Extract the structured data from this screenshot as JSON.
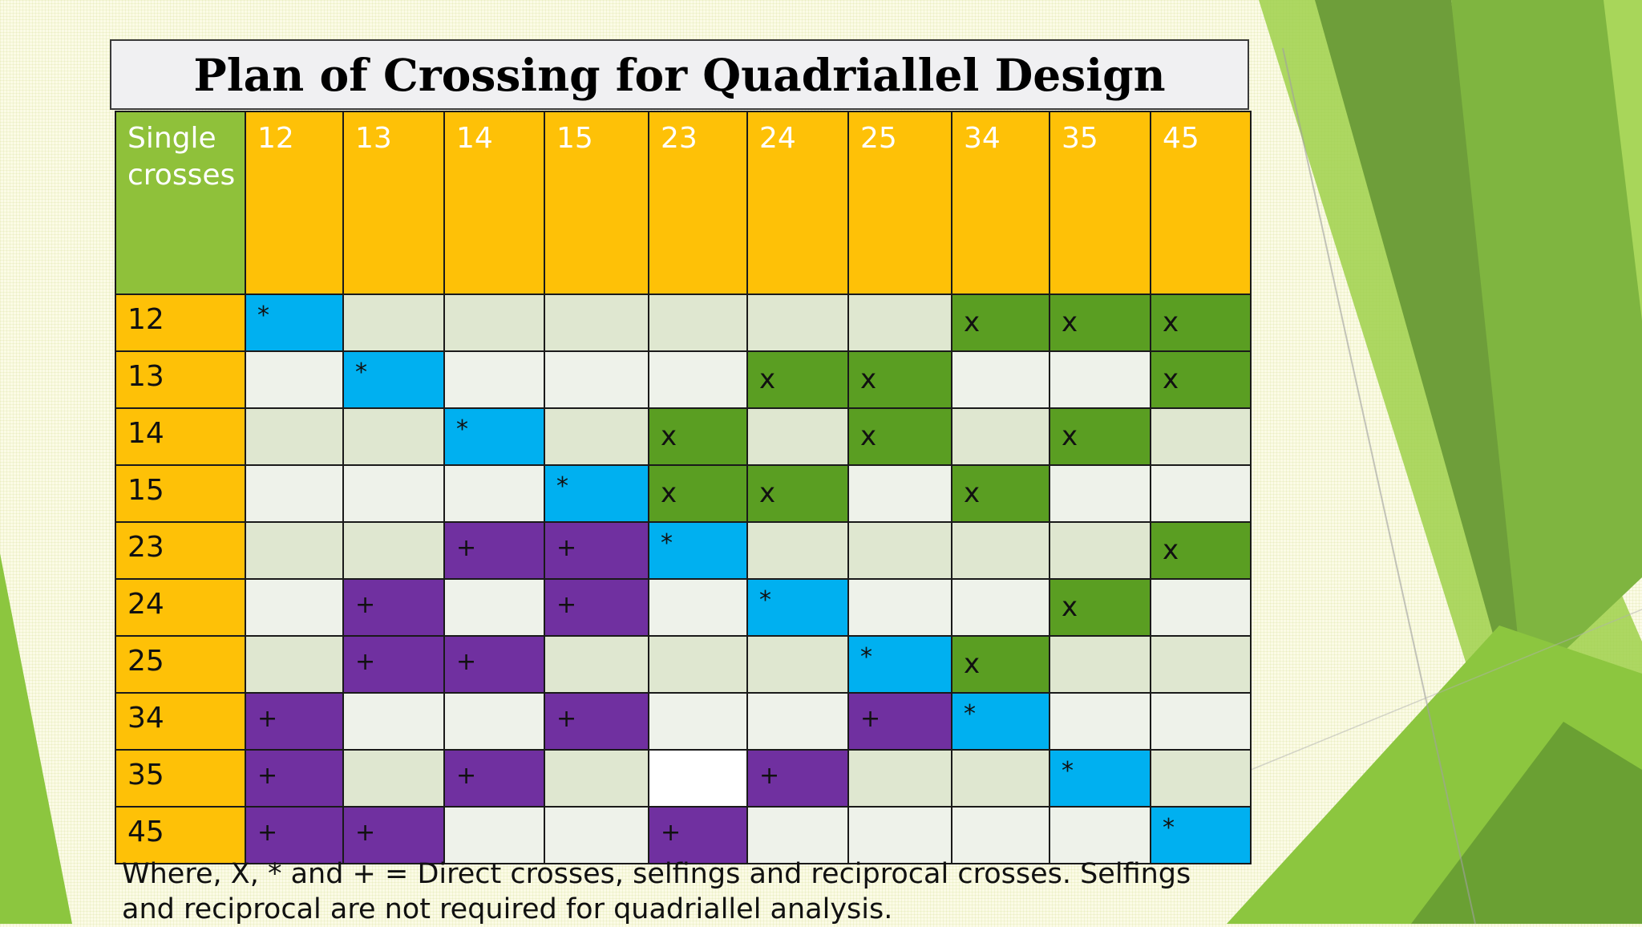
{
  "title": "Plan of Crossing for Quadriallel Design",
  "corner_label": "Single crosses",
  "columns": [
    "12",
    "13",
    "14",
    "15",
    "23",
    "24",
    "25",
    "34",
    "35",
    "45"
  ],
  "rows": [
    {
      "label": "12",
      "cells": [
        {
          "t": "b",
          "v": "*"
        },
        {
          "t": "d",
          "v": ""
        },
        {
          "t": "d",
          "v": ""
        },
        {
          "t": "d",
          "v": ""
        },
        {
          "t": "d",
          "v": ""
        },
        {
          "t": "d",
          "v": ""
        },
        {
          "t": "d",
          "v": ""
        },
        {
          "t": "g",
          "v": "x"
        },
        {
          "t": "g",
          "v": "x"
        },
        {
          "t": "g",
          "v": "x"
        }
      ]
    },
    {
      "label": "13",
      "cells": [
        {
          "t": "l",
          "v": ""
        },
        {
          "t": "b",
          "v": "*"
        },
        {
          "t": "l",
          "v": ""
        },
        {
          "t": "l",
          "v": ""
        },
        {
          "t": "l",
          "v": ""
        },
        {
          "t": "g",
          "v": "x"
        },
        {
          "t": "g",
          "v": "x"
        },
        {
          "t": "l",
          "v": ""
        },
        {
          "t": "l",
          "v": ""
        },
        {
          "t": "g",
          "v": "x"
        }
      ]
    },
    {
      "label": "14",
      "cells": [
        {
          "t": "d",
          "v": ""
        },
        {
          "t": "d",
          "v": ""
        },
        {
          "t": "b",
          "v": "*"
        },
        {
          "t": "d",
          "v": ""
        },
        {
          "t": "g",
          "v": "x"
        },
        {
          "t": "d",
          "v": ""
        },
        {
          "t": "g",
          "v": "x"
        },
        {
          "t": "d",
          "v": ""
        },
        {
          "t": "g",
          "v": "x"
        },
        {
          "t": "d",
          "v": ""
        }
      ]
    },
    {
      "label": "15",
      "cells": [
        {
          "t": "l",
          "v": ""
        },
        {
          "t": "l",
          "v": ""
        },
        {
          "t": "l",
          "v": ""
        },
        {
          "t": "b",
          "v": "*"
        },
        {
          "t": "g",
          "v": "x"
        },
        {
          "t": "g",
          "v": "x"
        },
        {
          "t": "l",
          "v": ""
        },
        {
          "t": "g",
          "v": "x"
        },
        {
          "t": "l",
          "v": ""
        },
        {
          "t": "l",
          "v": ""
        }
      ]
    },
    {
      "label": "23",
      "cells": [
        {
          "t": "d",
          "v": ""
        },
        {
          "t": "d",
          "v": ""
        },
        {
          "t": "p",
          "v": "+"
        },
        {
          "t": "p",
          "v": "+"
        },
        {
          "t": "b",
          "v": "*"
        },
        {
          "t": "d",
          "v": ""
        },
        {
          "t": "d",
          "v": ""
        },
        {
          "t": "d",
          "v": ""
        },
        {
          "t": "d",
          "v": ""
        },
        {
          "t": "g",
          "v": "x"
        }
      ]
    },
    {
      "label": "24",
      "cells": [
        {
          "t": "l",
          "v": ""
        },
        {
          "t": "p",
          "v": "+"
        },
        {
          "t": "l",
          "v": ""
        },
        {
          "t": "p",
          "v": "+"
        },
        {
          "t": "l",
          "v": ""
        },
        {
          "t": "b",
          "v": "*"
        },
        {
          "t": "l",
          "v": ""
        },
        {
          "t": "l",
          "v": ""
        },
        {
          "t": "g",
          "v": "x"
        },
        {
          "t": "l",
          "v": ""
        }
      ]
    },
    {
      "label": "25",
      "cells": [
        {
          "t": "d",
          "v": ""
        },
        {
          "t": "p",
          "v": "+"
        },
        {
          "t": "p",
          "v": "+"
        },
        {
          "t": "d",
          "v": ""
        },
        {
          "t": "d",
          "v": ""
        },
        {
          "t": "d",
          "v": ""
        },
        {
          "t": "b",
          "v": "*"
        },
        {
          "t": "g",
          "v": "x"
        },
        {
          "t": "d",
          "v": ""
        },
        {
          "t": "d",
          "v": ""
        }
      ]
    },
    {
      "label": "34",
      "cells": [
        {
          "t": "p",
          "v": "+"
        },
        {
          "t": "l",
          "v": ""
        },
        {
          "t": "l",
          "v": ""
        },
        {
          "t": "p",
          "v": "+"
        },
        {
          "t": "l",
          "v": ""
        },
        {
          "t": "l",
          "v": ""
        },
        {
          "t": "p",
          "v": "+"
        },
        {
          "t": "b",
          "v": "*"
        },
        {
          "t": "l",
          "v": ""
        },
        {
          "t": "l",
          "v": ""
        }
      ]
    },
    {
      "label": "35",
      "cells": [
        {
          "t": "p",
          "v": "+"
        },
        {
          "t": "d",
          "v": ""
        },
        {
          "t": "p",
          "v": "+"
        },
        {
          "t": "d",
          "v": ""
        },
        {
          "t": "w",
          "v": ""
        },
        {
          "t": "p",
          "v": "+"
        },
        {
          "t": "d",
          "v": ""
        },
        {
          "t": "d",
          "v": ""
        },
        {
          "t": "b",
          "v": "*"
        },
        {
          "t": "d",
          "v": ""
        }
      ]
    },
    {
      "label": "45",
      "cells": [
        {
          "t": "p",
          "v": "+"
        },
        {
          "t": "p",
          "v": "+"
        },
        {
          "t": "l",
          "v": ""
        },
        {
          "t": "l",
          "v": ""
        },
        {
          "t": "p",
          "v": "+"
        },
        {
          "t": "l",
          "v": ""
        },
        {
          "t": "l",
          "v": ""
        },
        {
          "t": "l",
          "v": ""
        },
        {
          "t": "l",
          "v": ""
        },
        {
          "t": "b",
          "v": "*"
        }
      ]
    }
  ],
  "note_lines": [
    "Where, X,  * and + = Direct crosses, selfings and reciprocal crosses. Selfings",
    "and reciprocal are not required for quadriallel analysis."
  ],
  "colors": {
    "header_orange": "#fec107",
    "corner_green": "#8fc13a",
    "selfing_blue": "#00b0f0",
    "direct_green": "#5a9e22",
    "reciprocal_purple": "#7030a0"
  }
}
